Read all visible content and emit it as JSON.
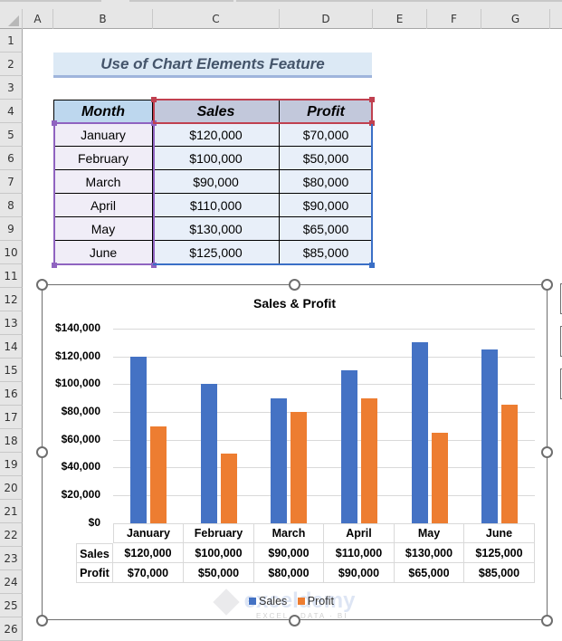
{
  "spreadsheet": {
    "columns": [
      "A",
      "B",
      "C",
      "D",
      "E",
      "F",
      "G"
    ],
    "rows": [
      "1",
      "2",
      "3",
      "4",
      "5",
      "6",
      "7",
      "8",
      "9",
      "10",
      "11",
      "12",
      "13",
      "14",
      "15",
      "16",
      "17",
      "18",
      "19",
      "20",
      "21",
      "22",
      "23",
      "24",
      "25",
      "26"
    ],
    "title": "Use of Chart Elements Feature",
    "table": {
      "headers": [
        "Month",
        "Sales",
        "Profit"
      ],
      "rows": [
        [
          "January",
          "$120,000",
          "$70,000"
        ],
        [
          "February",
          "$100,000",
          "$50,000"
        ],
        [
          "March",
          "$90,000",
          "$80,000"
        ],
        [
          "April",
          "$110,000",
          "$90,000"
        ],
        [
          "May",
          "$130,000",
          "$65,000"
        ],
        [
          "June",
          "$125,000",
          "$85,000"
        ]
      ]
    },
    "selection_colors": {
      "month_range": "#8f63c0",
      "header_range": "#c0404f",
      "values_range": "#3a6fc6"
    }
  },
  "chart": {
    "title": "Sales & Profit",
    "y_ticks": [
      "$140,000",
      "$120,000",
      "$100,000",
      "$80,000",
      "$60,000",
      "$40,000",
      "$20,000",
      "$0"
    ],
    "data_table": {
      "categories": [
        "January",
        "February",
        "March",
        "April",
        "May",
        "June"
      ],
      "rows": [
        {
          "label": "Sales",
          "values": [
            "$120,000",
            "$100,000",
            "$90,000",
            "$110,000",
            "$130,000",
            "$125,000"
          ]
        },
        {
          "label": "Profit",
          "values": [
            "$70,000",
            "$50,000",
            "$80,000",
            "$90,000",
            "$65,000",
            "$85,000"
          ]
        }
      ]
    },
    "legend": [
      {
        "label": "Sales",
        "color": "#4472c4"
      },
      {
        "label": "Profit",
        "color": "#ed7d31"
      }
    ],
    "watermark": {
      "name": "exceldemy",
      "tagline": "EXCEL · DATA · BI"
    }
  },
  "chart_data": {
    "type": "bar",
    "title": "Sales & Profit",
    "categories": [
      "January",
      "February",
      "March",
      "April",
      "May",
      "June"
    ],
    "series": [
      {
        "name": "Sales",
        "color": "#4472c4",
        "values": [
          120000,
          100000,
          90000,
          110000,
          130000,
          125000
        ]
      },
      {
        "name": "Profit",
        "color": "#ed7d31",
        "values": [
          70000,
          50000,
          80000,
          90000,
          65000,
          85000
        ]
      }
    ],
    "xlabel": "",
    "ylabel": "",
    "ylim": [
      0,
      140000
    ],
    "y_tick_step": 20000,
    "grid": true,
    "legend_position": "bottom",
    "data_table": true
  }
}
